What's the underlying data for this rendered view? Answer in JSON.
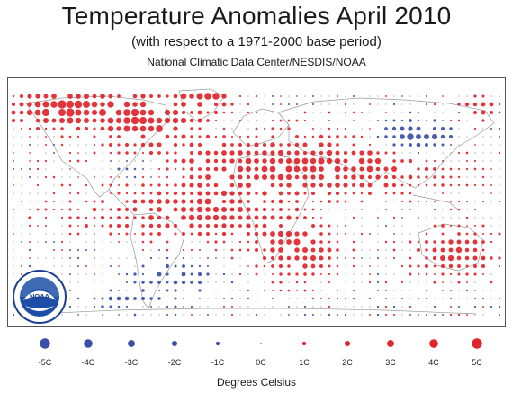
{
  "header": {
    "title": "Temperature Anomalies April 2010",
    "subtitle": "(with respect to a 1971-2000 base period)",
    "source": "National Climatic Data Center/NESDIS/NOAA"
  },
  "logo": {
    "text": "NOAA",
    "icon": "noaa-seal-icon"
  },
  "colors": {
    "cold": "#3a4fa8",
    "warm": "#e0242a",
    "land_outline": "#9a9a9a",
    "frame": "#555555"
  },
  "legend": {
    "units_label": "Degrees Celsius",
    "items": [
      {
        "label": "-5C",
        "value": -5
      },
      {
        "label": "-4C",
        "value": -4
      },
      {
        "label": "-3C",
        "value": -3
      },
      {
        "label": "-2C",
        "value": -2
      },
      {
        "label": "-1C",
        "value": -1
      },
      {
        "label": "0C",
        "value": 0
      },
      {
        "label": "1C",
        "value": 1
      },
      {
        "label": "2C",
        "value": 2
      },
      {
        "label": "3C",
        "value": 3
      },
      {
        "label": "4C",
        "value": 4
      },
      {
        "label": "5C",
        "value": 5
      }
    ]
  }
}
